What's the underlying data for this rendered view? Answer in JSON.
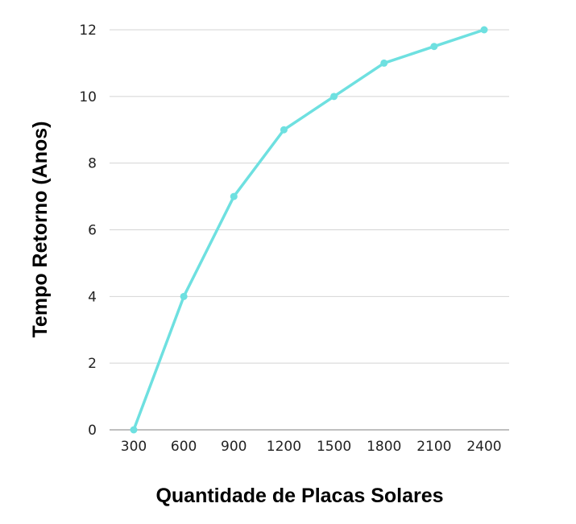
{
  "chart_data": {
    "type": "line",
    "title": "",
    "xlabel": "Quantidade de Placas Solares",
    "ylabel": "Tempo Retorno (Anos)",
    "categories": [
      "300",
      "600",
      "900",
      "1200",
      "1500",
      "1800",
      "2100",
      "2400"
    ],
    "series": [
      {
        "values": [
          0,
          4,
          7,
          9,
          10,
          11,
          11.5,
          12
        ],
        "color": "#6ee0e0"
      }
    ],
    "ylim": [
      0,
      12
    ],
    "yticks": [
      "0",
      "2",
      "4",
      "6",
      "8",
      "10",
      "12"
    ],
    "grid": true,
    "legend": "none"
  }
}
